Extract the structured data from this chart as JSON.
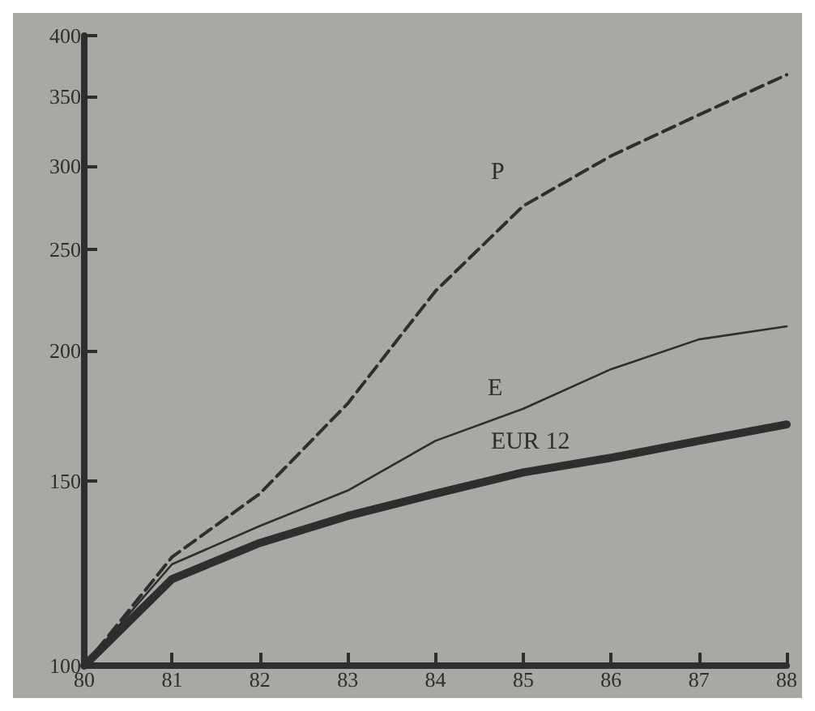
{
  "chart_data": {
    "type": "line",
    "categories": [
      "80",
      "81",
      "82",
      "83",
      "84",
      "85",
      "86",
      "87",
      "88"
    ],
    "series": [
      {
        "name": "P",
        "color": "#2e2e2e",
        "line_style": "dashed",
        "values": [
          100,
          127,
          146,
          178,
          228,
          275,
          307,
          336,
          367
        ]
      },
      {
        "name": "E",
        "color": "#2e2e2e",
        "line_style": "solid",
        "values": [
          100,
          125,
          136,
          147,
          164,
          176,
          192,
          205,
          211
        ]
      },
      {
        "name": "EUR 12",
        "color": "#2e2e2e",
        "line_style": "solid",
        "values": [
          100,
          121,
          131,
          139,
          146,
          153,
          158,
          164,
          170
        ]
      }
    ],
    "log": "y",
    "ylim": [
      100,
      400
    ],
    "yticks": [
      100,
      150,
      200,
      250,
      300,
      350,
      400
    ],
    "grid": false,
    "legend": false,
    "marker": "none"
  }
}
